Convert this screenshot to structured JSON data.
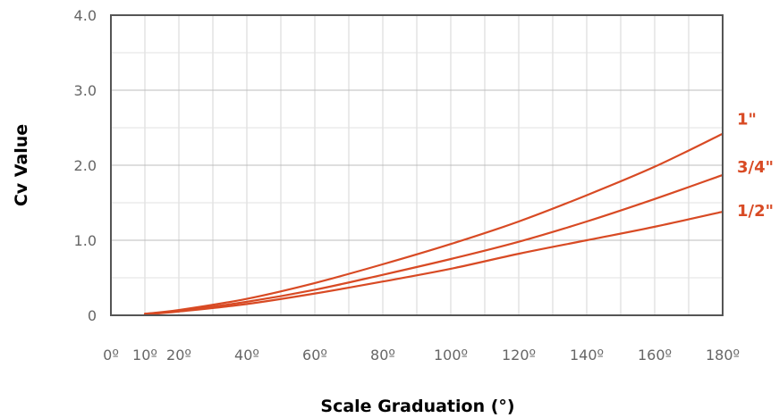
{
  "chart_data": {
    "type": "line",
    "xlabel": "Scale Graduation (°)",
    "ylabel": "Cv Value",
    "xlim": [
      0,
      180
    ],
    "ylim": [
      0,
      4
    ],
    "x_ticks": [
      0,
      10,
      20,
      40,
      60,
      80,
      100,
      120,
      140,
      160,
      180
    ],
    "x_tick_labels": [
      "0º",
      "10º",
      "20º",
      "40º",
      "60º",
      "80º",
      "100º",
      "120º",
      "140º",
      "160º",
      "180º"
    ],
    "y_ticks": [
      0,
      1,
      2,
      3,
      4
    ],
    "y_tick_labels": [
      "0",
      "1.0",
      "2.0",
      "3.0",
      "4.0"
    ],
    "grid": true,
    "x": [
      10,
      20,
      40,
      60,
      80,
      100,
      120,
      140,
      160,
      180
    ],
    "series": [
      {
        "name": "1\"",
        "color": "#d84a24",
        "values": [
          0.02,
          0.07,
          0.22,
          0.43,
          0.68,
          0.95,
          1.25,
          1.6,
          1.98,
          2.42
        ]
      },
      {
        "name": "3/4\"",
        "color": "#d84a24",
        "values": [
          0.02,
          0.06,
          0.18,
          0.34,
          0.54,
          0.75,
          0.98,
          1.25,
          1.55,
          1.87
        ]
      },
      {
        "name": "1/2\"",
        "color": "#d84a24",
        "values": [
          0.01,
          0.05,
          0.15,
          0.29,
          0.45,
          0.62,
          0.82,
          1.0,
          1.18,
          1.38
        ]
      }
    ]
  }
}
